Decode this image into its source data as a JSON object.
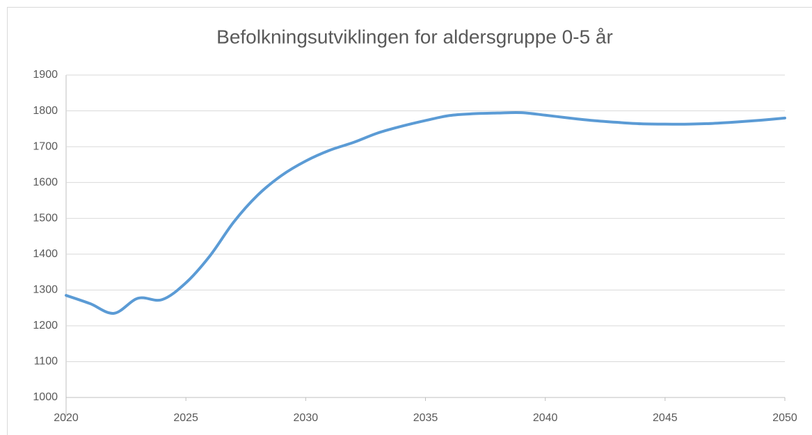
{
  "chart_data": {
    "type": "line",
    "title": "Befolkningsutviklingen for aldersgruppe 0-5 år",
    "x": [
      2020,
      2021,
      2022,
      2023,
      2024,
      2025,
      2026,
      2027,
      2028,
      2029,
      2030,
      2031,
      2032,
      2033,
      2034,
      2035,
      2036,
      2037,
      2038,
      2039,
      2040,
      2041,
      2042,
      2043,
      2044,
      2045,
      2046,
      2047,
      2048,
      2049,
      2050
    ],
    "series": [
      {
        "name": "0-5 år",
        "color": "#5b9bd5",
        "values": [
          1285,
          1262,
          1235,
          1277,
          1273,
          1320,
          1395,
          1490,
          1565,
          1620,
          1660,
          1690,
          1712,
          1738,
          1757,
          1773,
          1787,
          1792,
          1794,
          1795,
          1788,
          1780,
          1773,
          1768,
          1764,
          1763,
          1763,
          1765,
          1769,
          1774,
          1780
        ]
      }
    ],
    "xlim": [
      2020,
      2050
    ],
    "xticks": [
      2020,
      2025,
      2030,
      2035,
      2040,
      2045,
      2050
    ],
    "ylim": [
      1000,
      1900
    ],
    "yticks": [
      1000,
      1100,
      1200,
      1300,
      1400,
      1500,
      1600,
      1700,
      1800,
      1900
    ],
    "grid": true
  }
}
